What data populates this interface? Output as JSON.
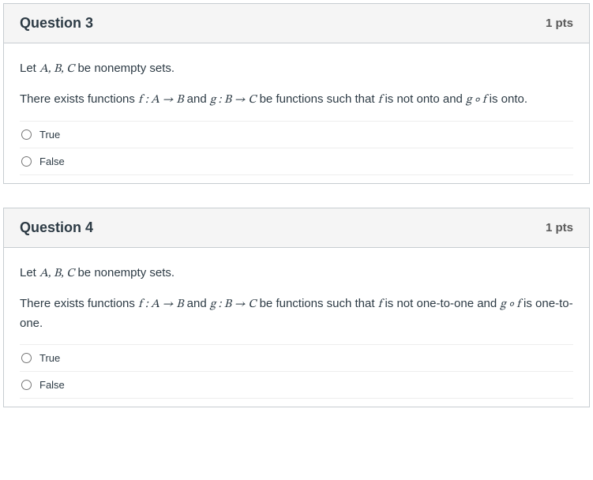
{
  "colors": {
    "border": "#c7cdd1",
    "header_bg": "#f5f5f5",
    "body_text": "#2d3b45",
    "pts_text": "#595959",
    "divider": "#eeeeee",
    "page_bg": "#ffffff"
  },
  "typography": {
    "title_fontsize": 18,
    "title_weight": 700,
    "pts_fontsize": 15,
    "pts_weight": 700,
    "body_fontsize": 15,
    "answer_fontsize": 13
  },
  "questions": [
    {
      "title": "Question 3",
      "points": "1 pts",
      "stem_lead": "Let ",
      "stem_sets": "A, B, C",
      "stem_lead_tail": " be nonempty sets.",
      "stem2_a": "There exists functions ",
      "stem2_f": "f : A → B",
      "stem2_b": " and ",
      "stem2_g": "g : B → C",
      "stem2_c": " be functions such that ",
      "stem2_fvar": "f",
      "stem2_d": " is not onto and ",
      "stem2_comp": "g ∘ f",
      "stem2_e": " is onto.",
      "answers": [
        "True",
        "False"
      ]
    },
    {
      "title": "Question 4",
      "points": "1 pts",
      "stem_lead": "Let ",
      "stem_sets": "A, B, C",
      "stem_lead_tail": " be nonempty sets.",
      "stem2_a": "There exists functions ",
      "stem2_f": "f : A → B",
      "stem2_b": " and ",
      "stem2_g": "g : B → C",
      "stem2_c": " be functions such that ",
      "stem2_fvar": "f",
      "stem2_d": " is not one-to-one and ",
      "stem2_comp": "g ∘ f",
      "stem2_e": " is one-to-one.",
      "answers": [
        "True",
        "False"
      ]
    }
  ]
}
